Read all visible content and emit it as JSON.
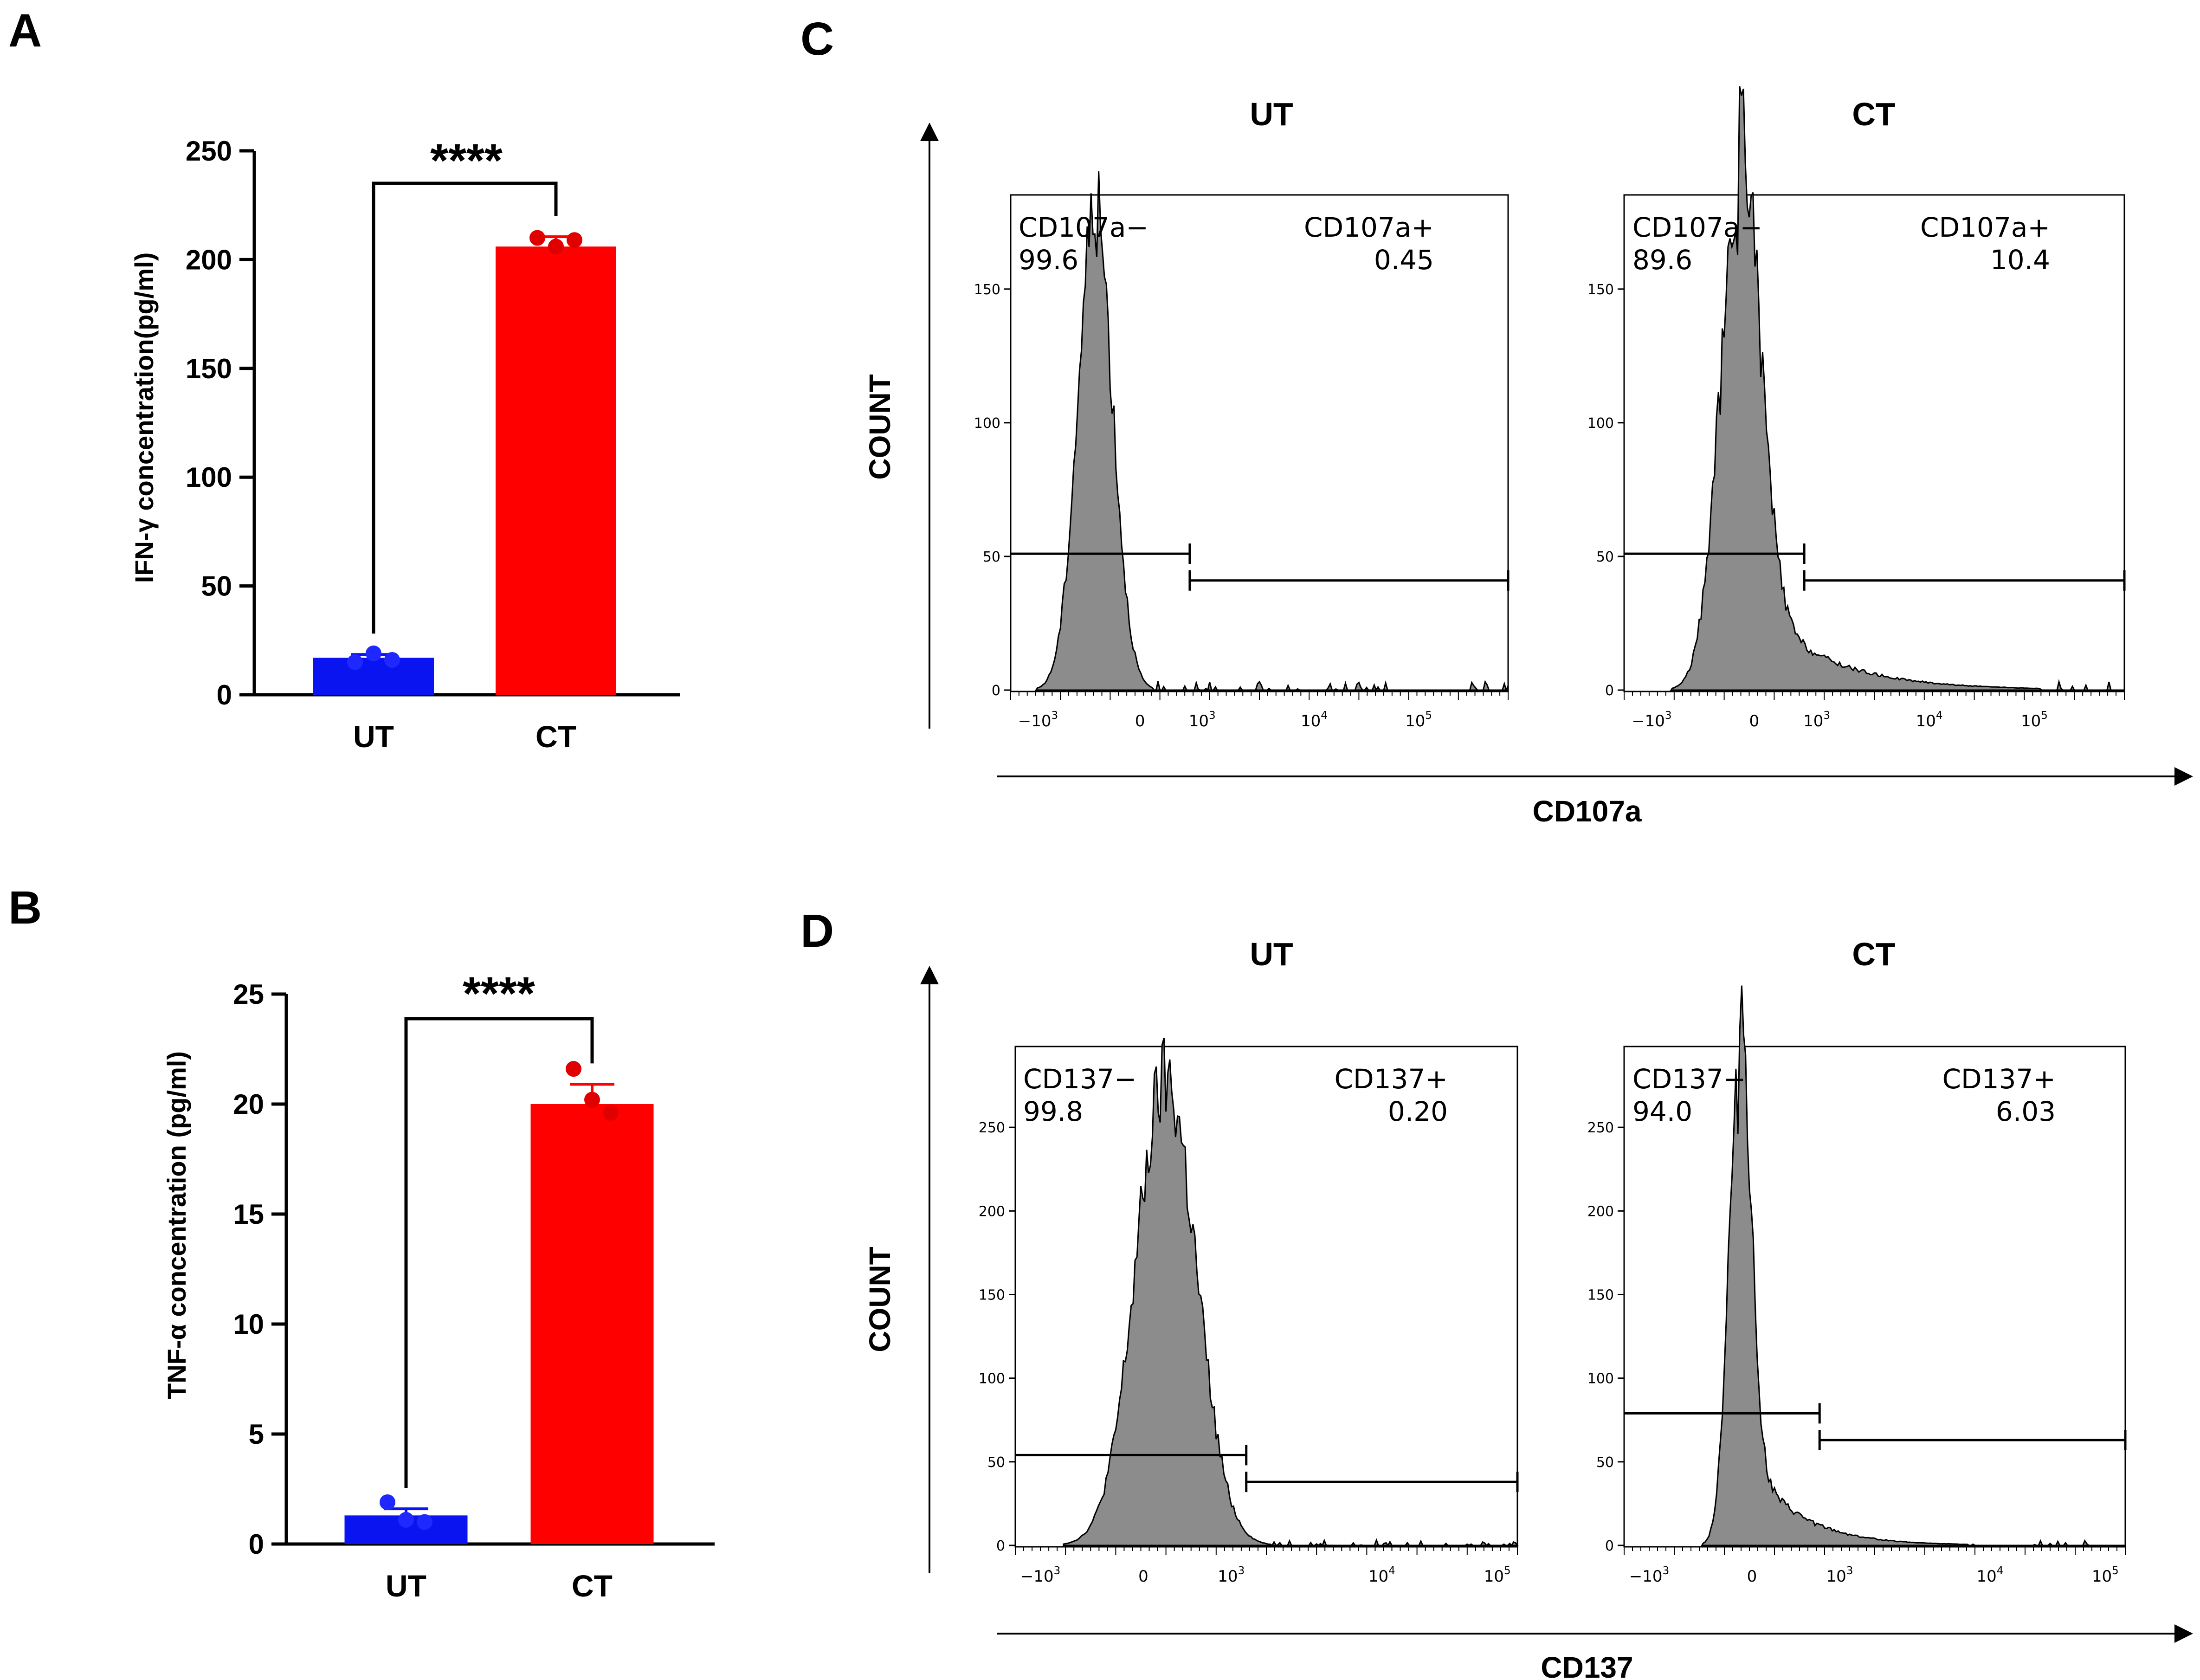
{
  "panel_labels": {
    "a": "A",
    "b": "B",
    "c": "C",
    "d": "D"
  },
  "colors": {
    "ut": "#0a14f0",
    "ct": "#ff0000",
    "ut_point": "#1e28ff",
    "ct_point": "#e00000",
    "histogram_fill": "#8c8c8c",
    "ink": "#000000"
  },
  "chart_data": [
    {
      "id": "A",
      "type": "bar",
      "title": "",
      "ylabel": "IFN-γ concentration(pg/ml)",
      "xlabel": "",
      "ylim": [
        0,
        250
      ],
      "yticks": [
        "0",
        "50",
        "100",
        "150",
        "200",
        "250"
      ],
      "categories": [
        "UT",
        "CT"
      ],
      "values": [
        17,
        206
      ],
      "errors": [
        1.5,
        4.5
      ],
      "points": [
        [
          15,
          19,
          16
        ],
        [
          210,
          206,
          209
        ]
      ],
      "significance": "****"
    },
    {
      "id": "B",
      "type": "bar",
      "title": "",
      "ylabel": "TNF-α concentration  (pg/ml)",
      "xlabel": "",
      "ylim": [
        0,
        25
      ],
      "yticks": [
        "0",
        "5",
        "10",
        "15",
        "20",
        "25"
      ],
      "categories": [
        "UT",
        "CT"
      ],
      "values": [
        1.3,
        20.0
      ],
      "errors": [
        0.3,
        0.9
      ],
      "points": [
        [
          1.9,
          1.1,
          1.0
        ],
        [
          21.6,
          20.2,
          19.6
        ]
      ],
      "significance": "****"
    },
    {
      "id": "C",
      "type": "histogram",
      "marker": "CD107a",
      "ylabel": "COUNT",
      "xlabel": "CD107a",
      "yticks": [
        "0",
        "50",
        "100",
        "150"
      ],
      "ymax": 180,
      "xticks": [
        "-10^3",
        "0",
        "10^3",
        "10^4",
        "10^5"
      ],
      "panels": [
        {
          "title": "UT",
          "gate_neg_label": "CD107a−",
          "gate_neg_value": "99.6",
          "gate_pos_label": "CD107a+",
          "gate_pos_value": "0.45",
          "peak_count": 180,
          "peak_pos": 0.17,
          "width": 0.035,
          "tail": 0.0,
          "gate_neg_level": 51,
          "gate_pos_level": 41,
          "threshold": 0.36
        },
        {
          "title": "CT",
          "gate_neg_label": "CD107a−",
          "gate_neg_value": "89.6",
          "gate_pos_label": "CD107a+",
          "gate_pos_value": "10.4",
          "peak_count": 178,
          "peak_pos": 0.23,
          "width": 0.04,
          "tail": 0.32,
          "gate_neg_level": 51,
          "gate_pos_level": 41,
          "threshold": 0.36
        }
      ]
    },
    {
      "id": "D",
      "type": "histogram",
      "marker": "CD137",
      "ylabel": "COUNT",
      "xlabel": "CD137",
      "yticks": [
        "0",
        "50",
        "100",
        "150",
        "200",
        "250"
      ],
      "ymax": 290,
      "xticks": [
        "-10^3",
        "0",
        "10^3",
        "10^4",
        "10^5"
      ],
      "panels": [
        {
          "title": "UT",
          "gate_neg_label": "CD137−",
          "gate_neg_value": "99.8",
          "gate_pos_label": "CD137+",
          "gate_pos_value": "0.20",
          "peak_count": 277,
          "peak_pos": 0.3,
          "width": 0.06,
          "tail": 0.0,
          "gate_neg_level": 54,
          "gate_pos_level": 38,
          "threshold": 0.46
        },
        {
          "title": "CT",
          "gate_neg_label": "CD137−",
          "gate_neg_value": "94.0",
          "gate_pos_label": "CD137+",
          "gate_pos_value": "6.03",
          "peak_count": 275,
          "peak_pos": 0.23,
          "width": 0.022,
          "tail": 0.22,
          "gate_neg_level": 79,
          "gate_pos_level": 63,
          "threshold": 0.39
        }
      ]
    }
  ]
}
